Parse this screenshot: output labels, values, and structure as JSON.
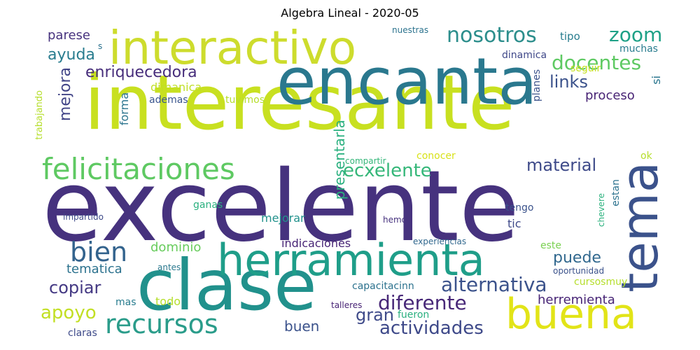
{
  "title": "Algebra Lineal - 2020-05",
  "words": [
    {
      "text": "excelente",
      "color": "#46327e",
      "size": 140
    },
    {
      "text": "interesante",
      "color": "#c8e020",
      "size": 108
    },
    {
      "text": "encanta",
      "color": "#2a788e",
      "size": 92
    },
    {
      "text": "clase",
      "color": "#21918c",
      "size": 100
    },
    {
      "text": "herramienta",
      "color": "#1f9e89",
      "size": 62
    },
    {
      "text": "interactivo",
      "color": "#cddc2d",
      "size": 66
    },
    {
      "text": "tema",
      "color": "#3b528b",
      "size": 72
    },
    {
      "text": "buena",
      "color": "#e2e418",
      "size": 60
    },
    {
      "text": "felicitaciones",
      "color": "#5ec962",
      "size": 42
    },
    {
      "text": "recursos",
      "color": "#2a9c8a",
      "size": 38
    },
    {
      "text": "bien",
      "color": "#33638d",
      "size": 38
    },
    {
      "text": "nosotros",
      "color": "#2c8e8c",
      "size": 30
    },
    {
      "text": "zoom",
      "color": "#1fa187",
      "size": 28
    },
    {
      "text": "docentes",
      "color": "#5ec962",
      "size": 28
    },
    {
      "text": "alternativa",
      "color": "#3b528b",
      "size": 28
    },
    {
      "text": "diferente",
      "color": "#482878",
      "size": 28
    },
    {
      "text": "ecxelente",
      "color": "#35b779",
      "size": 26
    },
    {
      "text": "actividades",
      "color": "#3e4989",
      "size": 26
    },
    {
      "text": "material",
      "color": "#3e4a89",
      "size": 24
    },
    {
      "text": "copiar",
      "color": "#443983",
      "size": 24
    },
    {
      "text": "apoyo",
      "color": "#c2df23",
      "size": 26
    },
    {
      "text": "gran",
      "color": "#3e4a89",
      "size": 24
    },
    {
      "text": "ayuda",
      "color": "#287c8e",
      "size": 22
    },
    {
      "text": "enriquecedora",
      "color": "#472d7b",
      "size": 22
    },
    {
      "text": "links",
      "color": "#3b528b",
      "size": 24
    },
    {
      "text": "puede",
      "color": "#31688e",
      "size": 22
    },
    {
      "text": "herremienta",
      "color": "#482576",
      "size": 18
    },
    {
      "text": "mejora",
      "color": "#414487",
      "size": 22
    },
    {
      "text": "buen",
      "color": "#3b528b",
      "size": 20
    },
    {
      "text": "presentarla",
      "color": "#2ab07f",
      "size": 20
    },
    {
      "text": "proceso",
      "color": "#482475",
      "size": 18
    },
    {
      "text": "dominio",
      "color": "#67cc5c",
      "size": 18
    },
    {
      "text": "tematica",
      "color": "#2c728e",
      "size": 18
    },
    {
      "text": "parese",
      "color": "#46327e",
      "size": 18
    },
    {
      "text": "dimanica",
      "color": "#c0df25",
      "size": 16
    },
    {
      "text": "forma",
      "color": "#2b748e",
      "size": 16
    },
    {
      "text": "todo",
      "color": "#b5de2b",
      "size": 16
    },
    {
      "text": "si",
      "color": "#2a768e",
      "size": 16
    },
    {
      "text": "tipo",
      "color": "#287d8e",
      "size": 15
    },
    {
      "text": "dinamica",
      "color": "#3f4889",
      "size": 14
    },
    {
      "text": "seguir",
      "color": "#c5e021",
      "size": 14
    },
    {
      "text": "muchas",
      "color": "#287c8e",
      "size": 14
    },
    {
      "text": "ademas",
      "color": "#39558c",
      "size": 14
    },
    {
      "text": "tuvimos",
      "color": "#b5de2b",
      "size": 14
    },
    {
      "text": "planes",
      "color": "#3b528b",
      "size": 14
    },
    {
      "text": "trabajando",
      "color": "#b5de2b",
      "size": 13
    },
    {
      "text": "nuestras",
      "color": "#2c738e",
      "size": 12
    },
    {
      "text": "s",
      "color": "#2c728e",
      "size": 12
    },
    {
      "text": "conocer",
      "color": "#d8e219",
      "size": 14
    },
    {
      "text": "compartir",
      "color": "#34b679",
      "size": 12
    },
    {
      "text": "ok",
      "color": "#b5de2b",
      "size": 14
    },
    {
      "text": "estan",
      "color": "#2c728e",
      "size": 14
    },
    {
      "text": "ganas",
      "color": "#2ab07f",
      "size": 14
    },
    {
      "text": "tengo",
      "color": "#3b528b",
      "size": 14
    },
    {
      "text": "mejorar",
      "color": "#21918c",
      "size": 16
    },
    {
      "text": "tic",
      "color": "#3e4989",
      "size": 16
    },
    {
      "text": "impartido",
      "color": "#3e4a89",
      "size": 12
    },
    {
      "text": "hemos",
      "color": "#46327e",
      "size": 12
    },
    {
      "text": "chevere",
      "color": "#2cb17e",
      "size": 12
    },
    {
      "text": "indicaciones",
      "color": "#482576",
      "size": 16
    },
    {
      "text": "experiencias",
      "color": "#31688e",
      "size": 12
    },
    {
      "text": "este",
      "color": "#7ad151",
      "size": 14
    },
    {
      "text": "antes",
      "color": "#2a788e",
      "size": 12
    },
    {
      "text": "oportunidad",
      "color": "#3b528b",
      "size": 12
    },
    {
      "text": "capacitacinn",
      "color": "#2c728e",
      "size": 14
    },
    {
      "text": "cursosmuy",
      "color": "#b5de2b",
      "size": 14
    },
    {
      "text": "mas",
      "color": "#287c8e",
      "size": 14
    },
    {
      "text": "talleres",
      "color": "#482475",
      "size": 12
    },
    {
      "text": "fueron",
      "color": "#2ab07f",
      "size": 14
    },
    {
      "text": "claras",
      "color": "#3e4a89",
      "size": 14
    }
  ]
}
